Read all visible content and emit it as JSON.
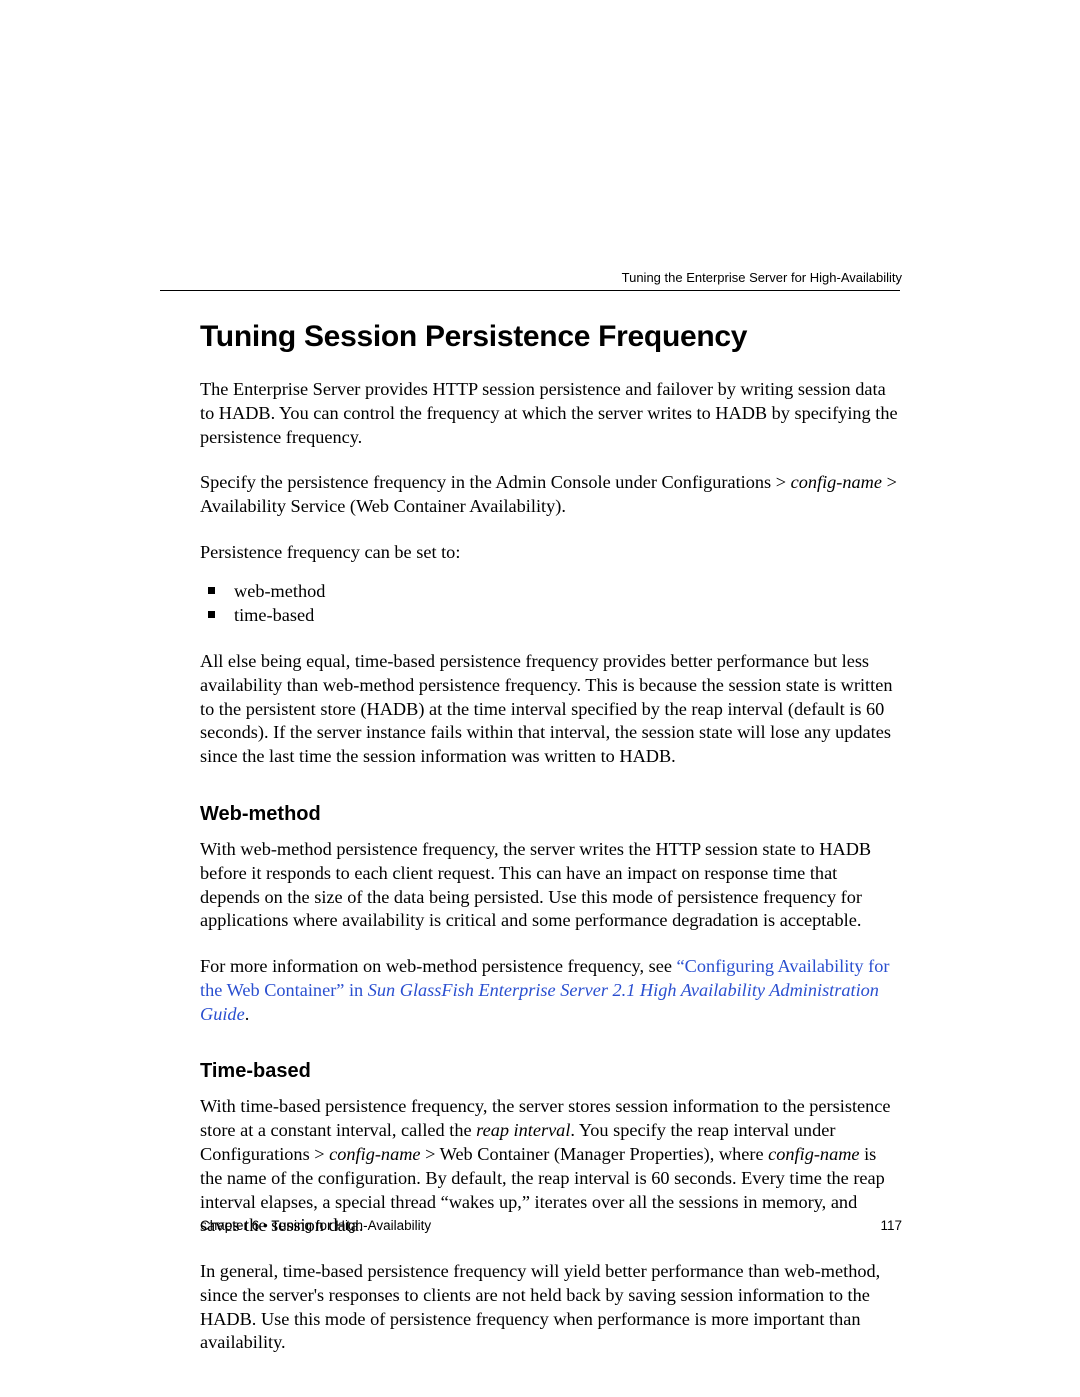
{
  "colors": {
    "text": "#000000",
    "link": "#2a4fd0",
    "background": "#ffffff",
    "rule": "#000000"
  },
  "typography": {
    "body_family": "Minion Pro / Times New Roman (serif)",
    "heading_family": "Helvetica Neue / Arial (sans-serif)",
    "body_size_pt": 14,
    "h1_size_pt": 22,
    "h2_size_pt": 15,
    "running_header_size_pt": 10,
    "footer_size_pt": 10
  },
  "header": {
    "running": "Tuning the Enterprise Server for High-Availability"
  },
  "title": "Tuning Session Persistence Frequency",
  "para1": "The Enterprise Server provides HTTP session persistence and failover by writing session data to HADB. You can control the frequency at which the server writes to HADB by specifying the persistence frequency.",
  "para2_pre": "Specify the persistence frequency in the Admin Console under Configurations > ",
  "para2_em": "config-name",
  "para2_post": " > Availability Service (Web Container Availability).",
  "para3": "Persistence frequency can be set to:",
  "list": {
    "items": [
      {
        "label": "web-method"
      },
      {
        "label": "time-based"
      }
    ]
  },
  "para4": "All else being equal, time-based persistence frequency provides better performance but less availability than web-method persistence frequency. This is because the session state is written to the persistent store (HADB) at the time interval specified by the reap interval (default is 60 seconds). If the server instance fails within that interval, the session state will lose any updates since the last time the session information was written to HADB.",
  "section_web": {
    "heading": "Web-method",
    "p1": "With web-method persistence frequency, the server writes the HTTP session state to HADB before it responds to each client request. This can have an impact on response time that depends on the size of the data being persisted. Use this mode of persistence frequency for applications where availability is critical and some performance degradation is acceptable.",
    "p2_pre": "For more information on web-method persistence frequency, see ",
    "p2_link1": "“Configuring Availability for the Web Container” in ",
    "p2_link2": "Sun GlassFish Enterprise Server 2.1 High Availability Administration Guide",
    "p2_post": "."
  },
  "section_time": {
    "heading": "Time-based",
    "p1_a": "With time-based persistence frequency, the server stores session information to the persistence store at a constant interval, called the ",
    "p1_em1": "reap interval",
    "p1_b": ". You specify the reap interval under Configurations > ",
    "p1_em2": "config-name",
    "p1_c": " > Web Container (Manager Properties), where ",
    "p1_em3": "config-name",
    "p1_d": " is the name of the configuration. By default, the reap interval is 60 seconds. Every time the reap interval elapses, a special thread “wakes up,” iterates over all the sessions in memory, and saves the session data.",
    "p2": "In general, time-based persistence frequency will yield better performance than web-method, since the server's responses to clients are not held back by saving session information to the HADB. Use this mode of persistence frequency when performance is more important than availability."
  },
  "footer": {
    "chapter": "Chapter 6  •  Tuning for High-Availability",
    "page": "117"
  }
}
